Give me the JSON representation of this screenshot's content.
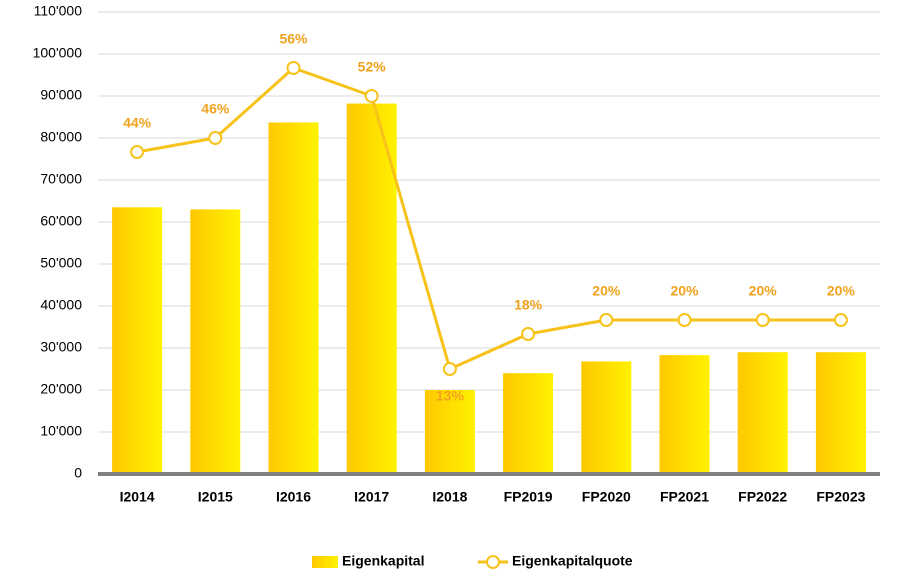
{
  "chart_data": {
    "type": "bar_line",
    "categories": [
      "I2014",
      "I2015",
      "I2016",
      "I2017",
      "I2018",
      "FP2019",
      "FP2020",
      "FP2021",
      "FP2022",
      "FP2023"
    ],
    "series": [
      {
        "name": "Eigenkapital",
        "type": "bar",
        "color": "#ffd600",
        "values": [
          63500,
          63000,
          83700,
          88200,
          20000,
          24000,
          26800,
          28300,
          29000,
          29000
        ]
      },
      {
        "name": "Eigenkapitalquote",
        "type": "line",
        "axis": "y2",
        "color": "#f7c21a",
        "values": [
          44,
          46,
          56,
          52,
          13,
          18,
          20,
          20,
          20,
          20
        ],
        "value_labels": [
          "44%",
          "46%",
          "56%",
          "52%",
          "13%",
          "18%",
          "20%",
          "20%",
          "20%",
          "20%"
        ]
      }
    ],
    "ylim": [
      0,
      110000
    ],
    "yticks": [
      0,
      {
        "value": 10000,
        "label": "10'000"
      },
      {
        "value": 20000,
        "label": "20'000"
      },
      {
        "value": 30000,
        "label": "30'000"
      },
      {
        "value": 40000,
        "label": "40'000"
      },
      {
        "value": 50000,
        "label": "50'000"
      },
      {
        "value": 60000,
        "label": "60'000"
      },
      {
        "value": 70000,
        "label": "70'000"
      },
      {
        "value": 80000,
        "label": "80'000"
      },
      {
        "value": 90000,
        "label": "90'000"
      },
      {
        "value": 100000,
        "label": "100'000"
      },
      {
        "value": 110000,
        "label": "110'000"
      }
    ],
    "y2lim": [
      -2,
      64
    ],
    "grid": true,
    "legend": "bottom"
  }
}
